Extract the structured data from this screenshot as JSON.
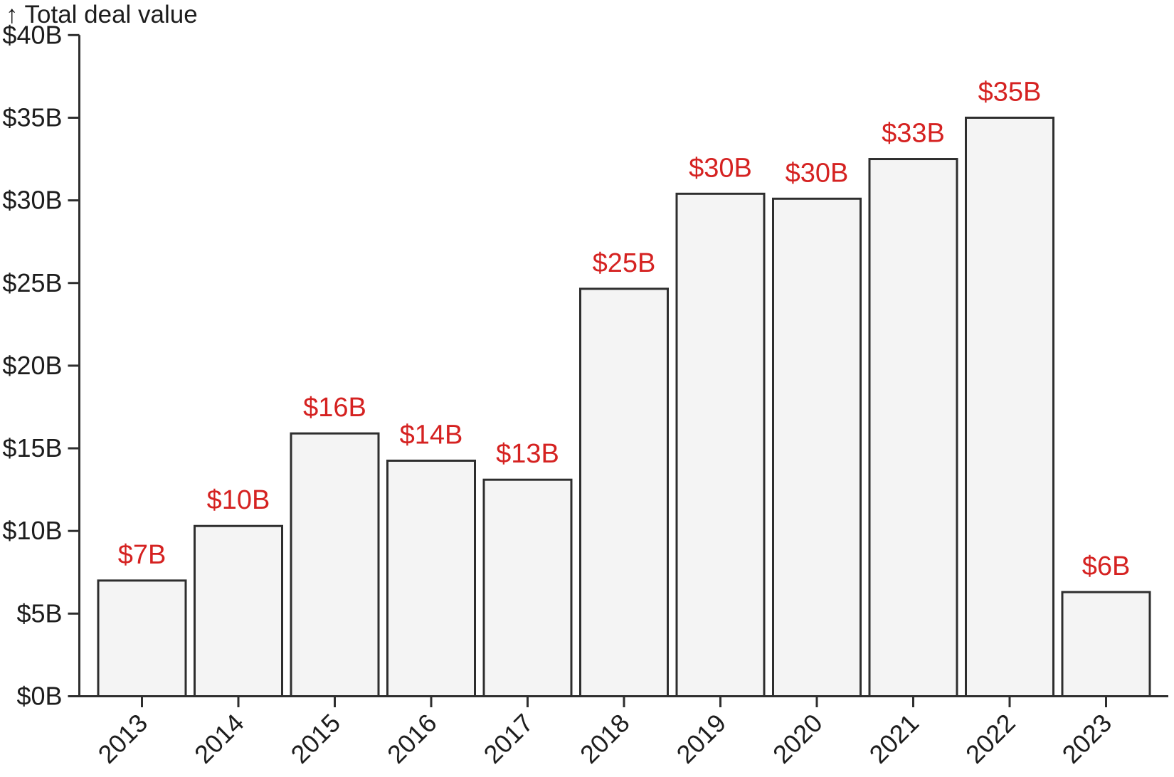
{
  "chart_data": {
    "type": "bar",
    "title": "Total deal value",
    "y_axis": {
      "arrow": "↑",
      "label": "Total deal value",
      "min": 0,
      "max": 40,
      "tick_step": 5,
      "tick_labels": [
        "$0B",
        "$5B",
        "$10B",
        "$15B",
        "$20B",
        "$25B",
        "$30B",
        "$35B",
        "$40B"
      ],
      "grid": false
    },
    "x_axis": {
      "label": "",
      "tick_labels": [
        "2013",
        "2014",
        "2015",
        "2016",
        "2017",
        "2018",
        "2019",
        "2020",
        "2021",
        "2022",
        "2023"
      ]
    },
    "categories": [
      "2013",
      "2014",
      "2015",
      "2016",
      "2017",
      "2018",
      "2019",
      "2020",
      "2021",
      "2022",
      "2023"
    ],
    "values": [
      7.0,
      10.3,
      15.9,
      14.25,
      13.1,
      24.65,
      30.4,
      30.1,
      32.5,
      35.0,
      6.3
    ],
    "value_labels": [
      "$7B",
      "$10B",
      "$16B",
      "$14B",
      "$13B",
      "$25B",
      "$30B",
      "$30B",
      "$33B",
      "$35B",
      "$6B"
    ],
    "legend": "none"
  },
  "colors": {
    "background": "#ffffff",
    "bar_fill": "#f4f4f4",
    "bar_stroke": "#2e2e2e",
    "axis": "#2e2e2e",
    "text": "#1d1d1d",
    "value_label": "#d52221"
  }
}
